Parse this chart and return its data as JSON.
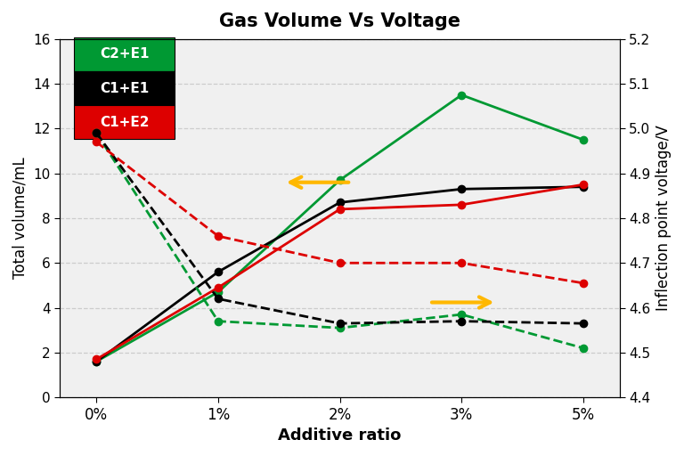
{
  "title": "Gas Volume Vs Voltage",
  "xlabel": "Additive ratio",
  "ylabel_left": "Total volume/mL",
  "ylabel_right": "Inflection point voltage/V",
  "x_labels": [
    "0%",
    "1%",
    "2%",
    "3%",
    "5%"
  ],
  "x_vals": [
    0,
    1,
    2,
    3,
    4
  ],
  "solid_C2E1": [
    1.6,
    4.7,
    9.7,
    13.5,
    11.5
  ],
  "solid_C1E1": [
    1.6,
    5.6,
    8.7,
    9.3,
    9.4
  ],
  "solid_C1E2": [
    1.7,
    4.9,
    8.4,
    8.6,
    9.5
  ],
  "dashed_C2E1": [
    4.99,
    4.57,
    4.555,
    4.585,
    4.51
  ],
  "dashed_C1E1": [
    4.99,
    4.62,
    4.565,
    4.57,
    4.565
  ],
  "dashed_C1E2": [
    4.97,
    4.76,
    4.7,
    4.7,
    4.655
  ],
  "ylim_left": [
    0,
    16
  ],
  "ylim_right": [
    4.4,
    5.2
  ],
  "color_green": "#009933",
  "color_black": "#000000",
  "color_red": "#DD0000",
  "legend_labels": [
    "C2+E1",
    "C1+E1",
    "C1+E2"
  ],
  "legend_bg_colors": [
    "#009933",
    "#000000",
    "#DD0000"
  ],
  "bg_color": "#f0f0f0",
  "grid_color": "#cccccc",
  "arrow_color": "#FFB800"
}
